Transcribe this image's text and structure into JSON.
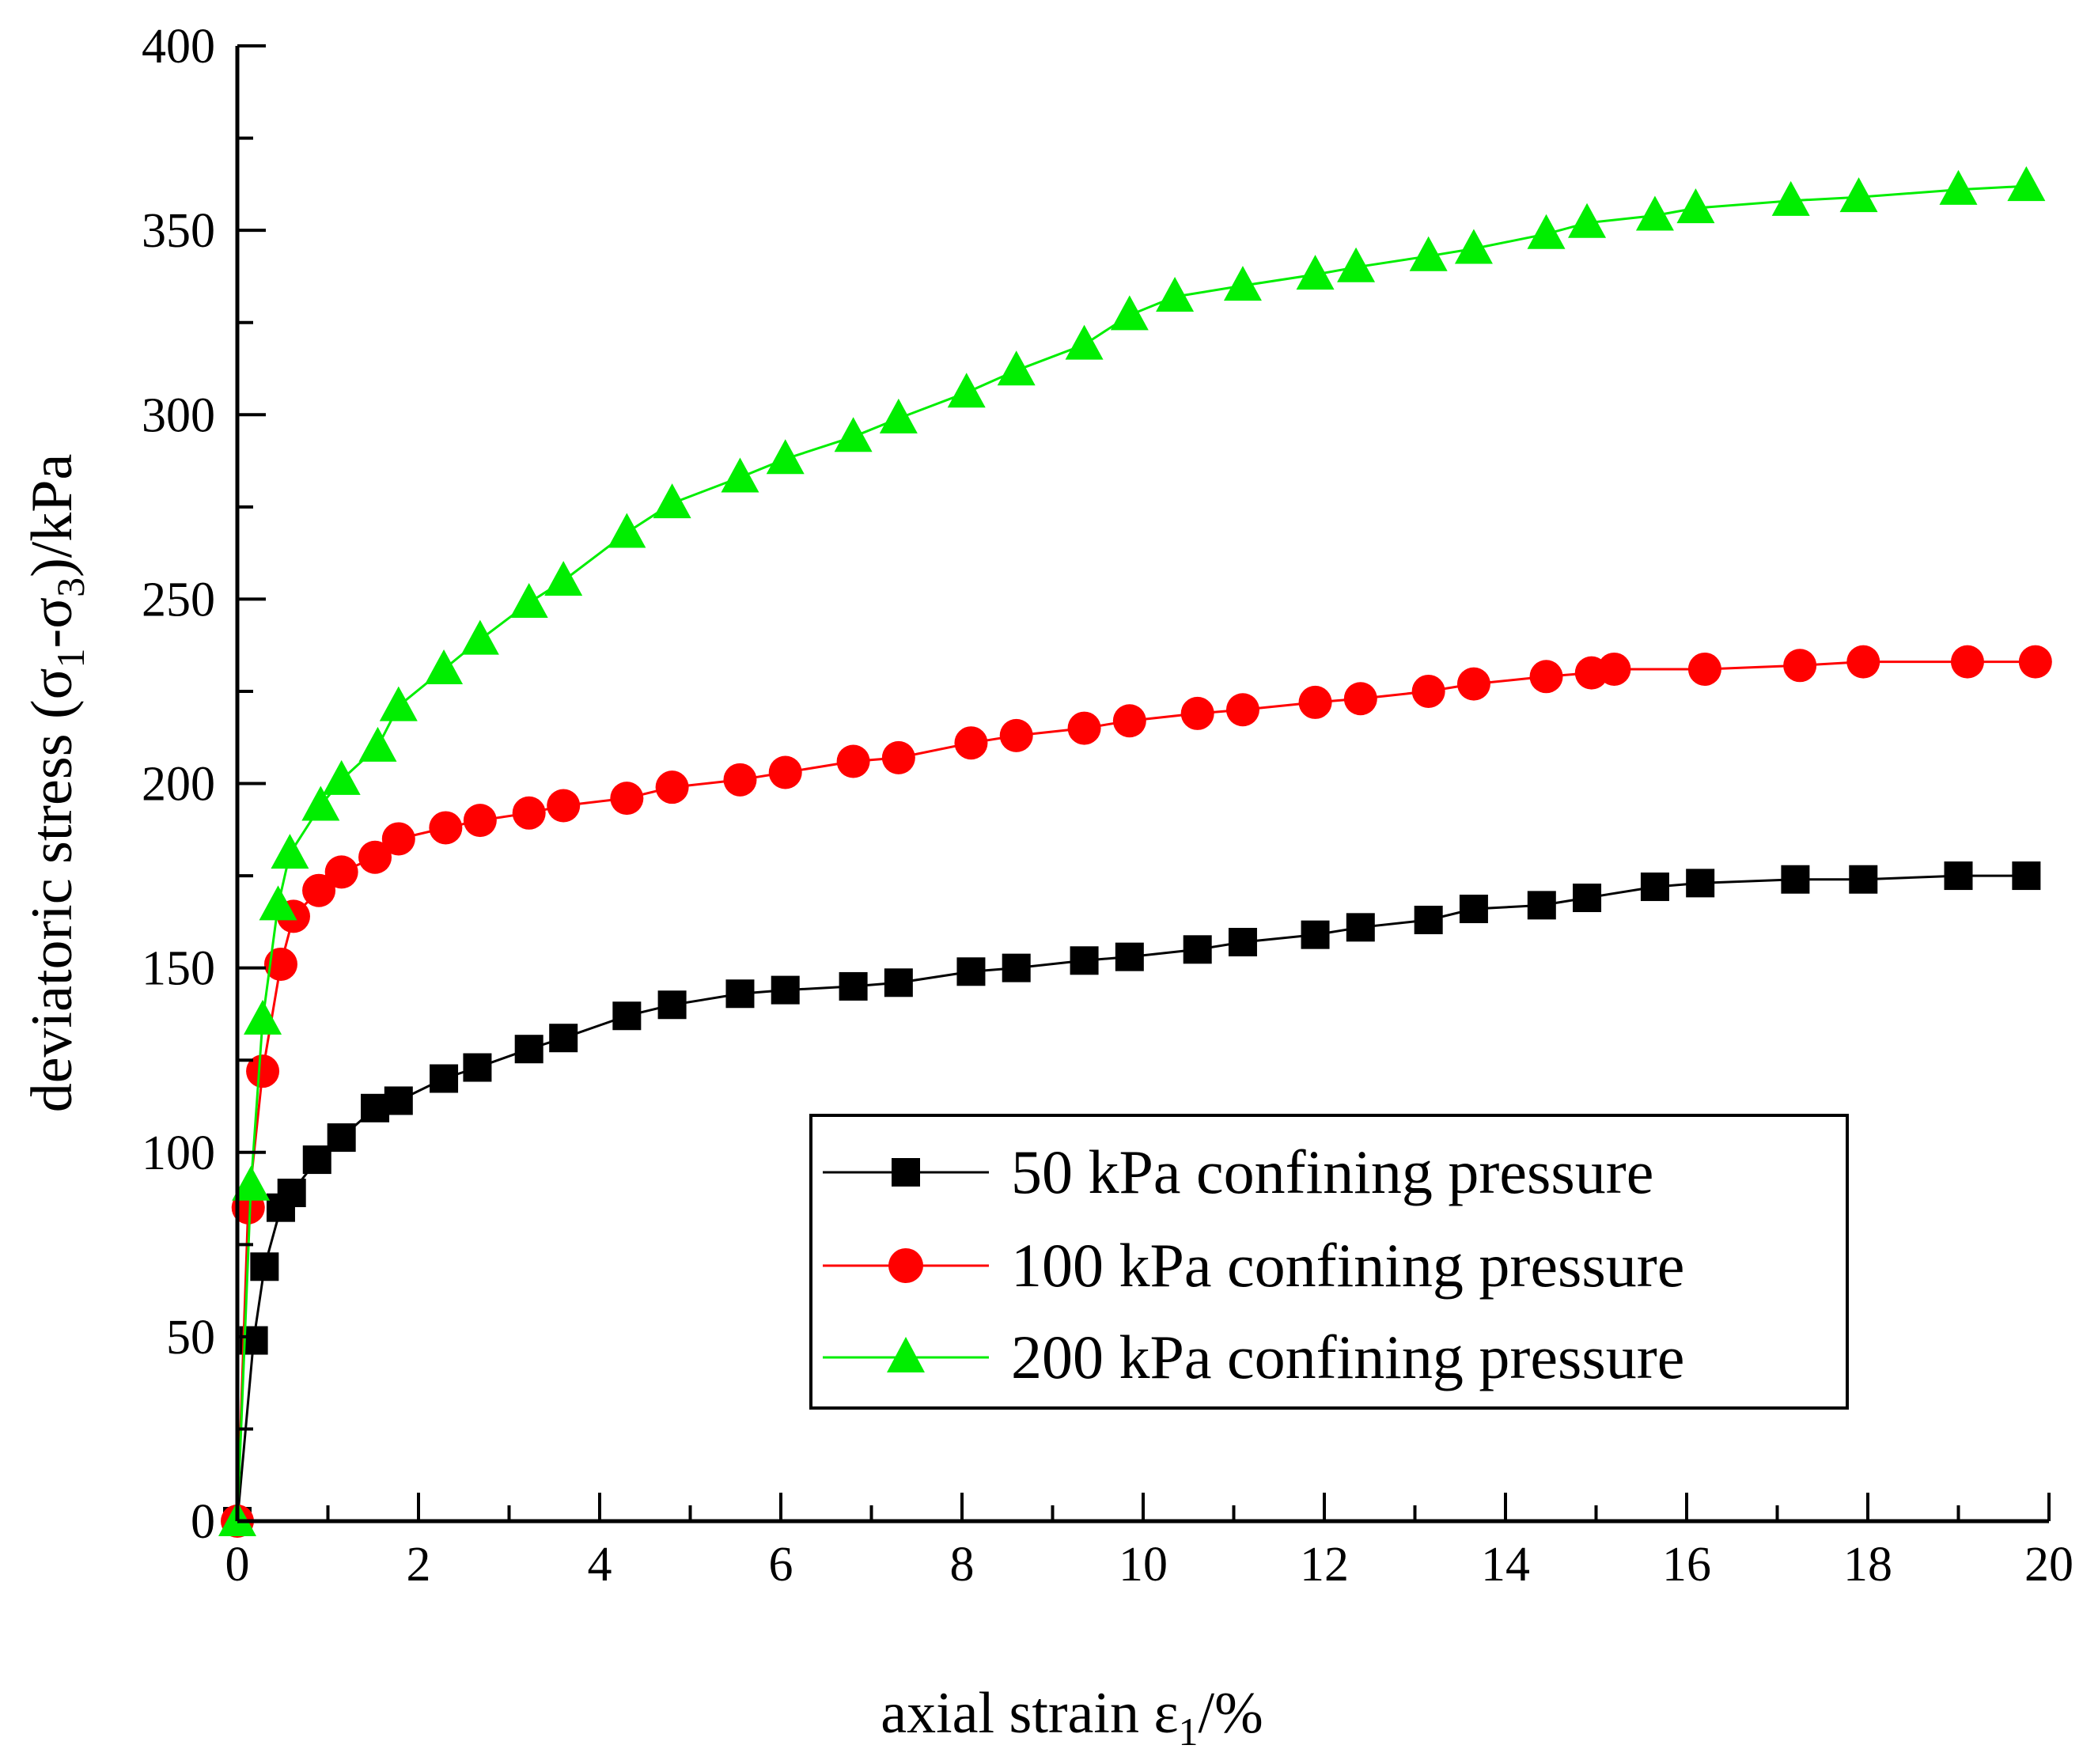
{
  "chart_data": {
    "type": "line",
    "title": "",
    "xlabel": {
      "main": "axial strain ε",
      "sub": "1",
      "suffix": "/%"
    },
    "ylabel": {
      "prefix": "deviatoric stress (σ",
      "sub1": "1",
      "mid": "-σ",
      "sub2": "3",
      "suffix": ")/kPa"
    },
    "xlim": [
      0,
      20
    ],
    "ylim": [
      0,
      400
    ],
    "xticks": [
      "0",
      "2",
      "4",
      "6",
      "8",
      "10",
      "12",
      "14",
      "16",
      "18",
      "20"
    ],
    "yticks": [
      "0",
      "50",
      "100",
      "150",
      "200",
      "250",
      "300",
      "350",
      "400"
    ],
    "grid": false,
    "legend_position": "bottom-right",
    "series": [
      {
        "name": "50 kPa confining pressure",
        "color": "#000000",
        "marker": "square",
        "x": [
          0.0,
          0.18,
          0.3,
          0.48,
          0.6,
          0.88,
          1.15,
          1.52,
          1.78,
          2.28,
          2.65,
          3.22,
          3.6,
          4.3,
          4.8,
          5.55,
          6.05,
          6.8,
          7.3,
          8.1,
          8.6,
          9.35,
          9.85,
          10.6,
          11.1,
          11.9,
          12.4,
          13.15,
          13.65,
          14.4,
          14.9,
          15.65,
          16.15,
          17.2,
          17.95,
          19.0,
          19.75
        ],
        "y": [
          0,
          49,
          69,
          85,
          89,
          98,
          104,
          112,
          114,
          120,
          123,
          128,
          131,
          137,
          140,
          143,
          144,
          145,
          146,
          149,
          150,
          152,
          153,
          155,
          157,
          159,
          161,
          163,
          166,
          167,
          169,
          172,
          173,
          174,
          174,
          175,
          175
        ]
      },
      {
        "name": "100 kPa confining pressure",
        "color": "#ff0000",
        "marker": "circle",
        "x": [
          0.0,
          0.12,
          0.28,
          0.48,
          0.62,
          0.9,
          1.15,
          1.52,
          1.78,
          2.3,
          2.68,
          3.22,
          3.6,
          4.3,
          4.8,
          5.55,
          6.05,
          6.8,
          7.3,
          8.1,
          8.6,
          9.35,
          9.85,
          10.6,
          11.1,
          11.9,
          12.4,
          13.15,
          13.65,
          14.45,
          14.95,
          15.2,
          16.2,
          17.25,
          17.95,
          19.1,
          19.85
        ],
        "y": [
          0,
          85,
          122,
          151,
          164,
          171,
          176,
          180,
          185,
          188,
          190,
          192,
          194,
          196,
          199,
          201,
          203,
          206,
          207,
          211,
          213,
          215,
          217,
          219,
          220,
          222,
          223,
          225,
          227,
          229,
          230,
          231,
          231,
          232,
          233,
          233,
          233
        ]
      },
      {
        "name": "200 kPa confining pressure",
        "color": "#00ee00",
        "marker": "triangle",
        "x": [
          0.0,
          0.15,
          0.28,
          0.45,
          0.58,
          0.92,
          1.15,
          1.55,
          1.78,
          2.28,
          2.68,
          3.22,
          3.6,
          4.3,
          4.8,
          5.55,
          6.05,
          6.8,
          7.3,
          8.05,
          8.6,
          9.35,
          9.85,
          10.35,
          11.1,
          11.9,
          12.35,
          13.15,
          13.65,
          14.45,
          14.9,
          15.65,
          16.1,
          17.15,
          17.9,
          19.0,
          19.75
        ],
        "y": [
          0,
          91,
          136,
          167,
          181,
          194,
          201,
          210,
          221,
          231,
          239,
          249,
          255,
          268,
          276,
          283,
          288,
          294,
          299,
          306,
          312,
          319,
          327,
          332,
          335,
          338,
          340,
          343,
          345,
          349,
          352,
          354,
          356,
          358,
          359,
          361,
          362
        ]
      }
    ]
  }
}
